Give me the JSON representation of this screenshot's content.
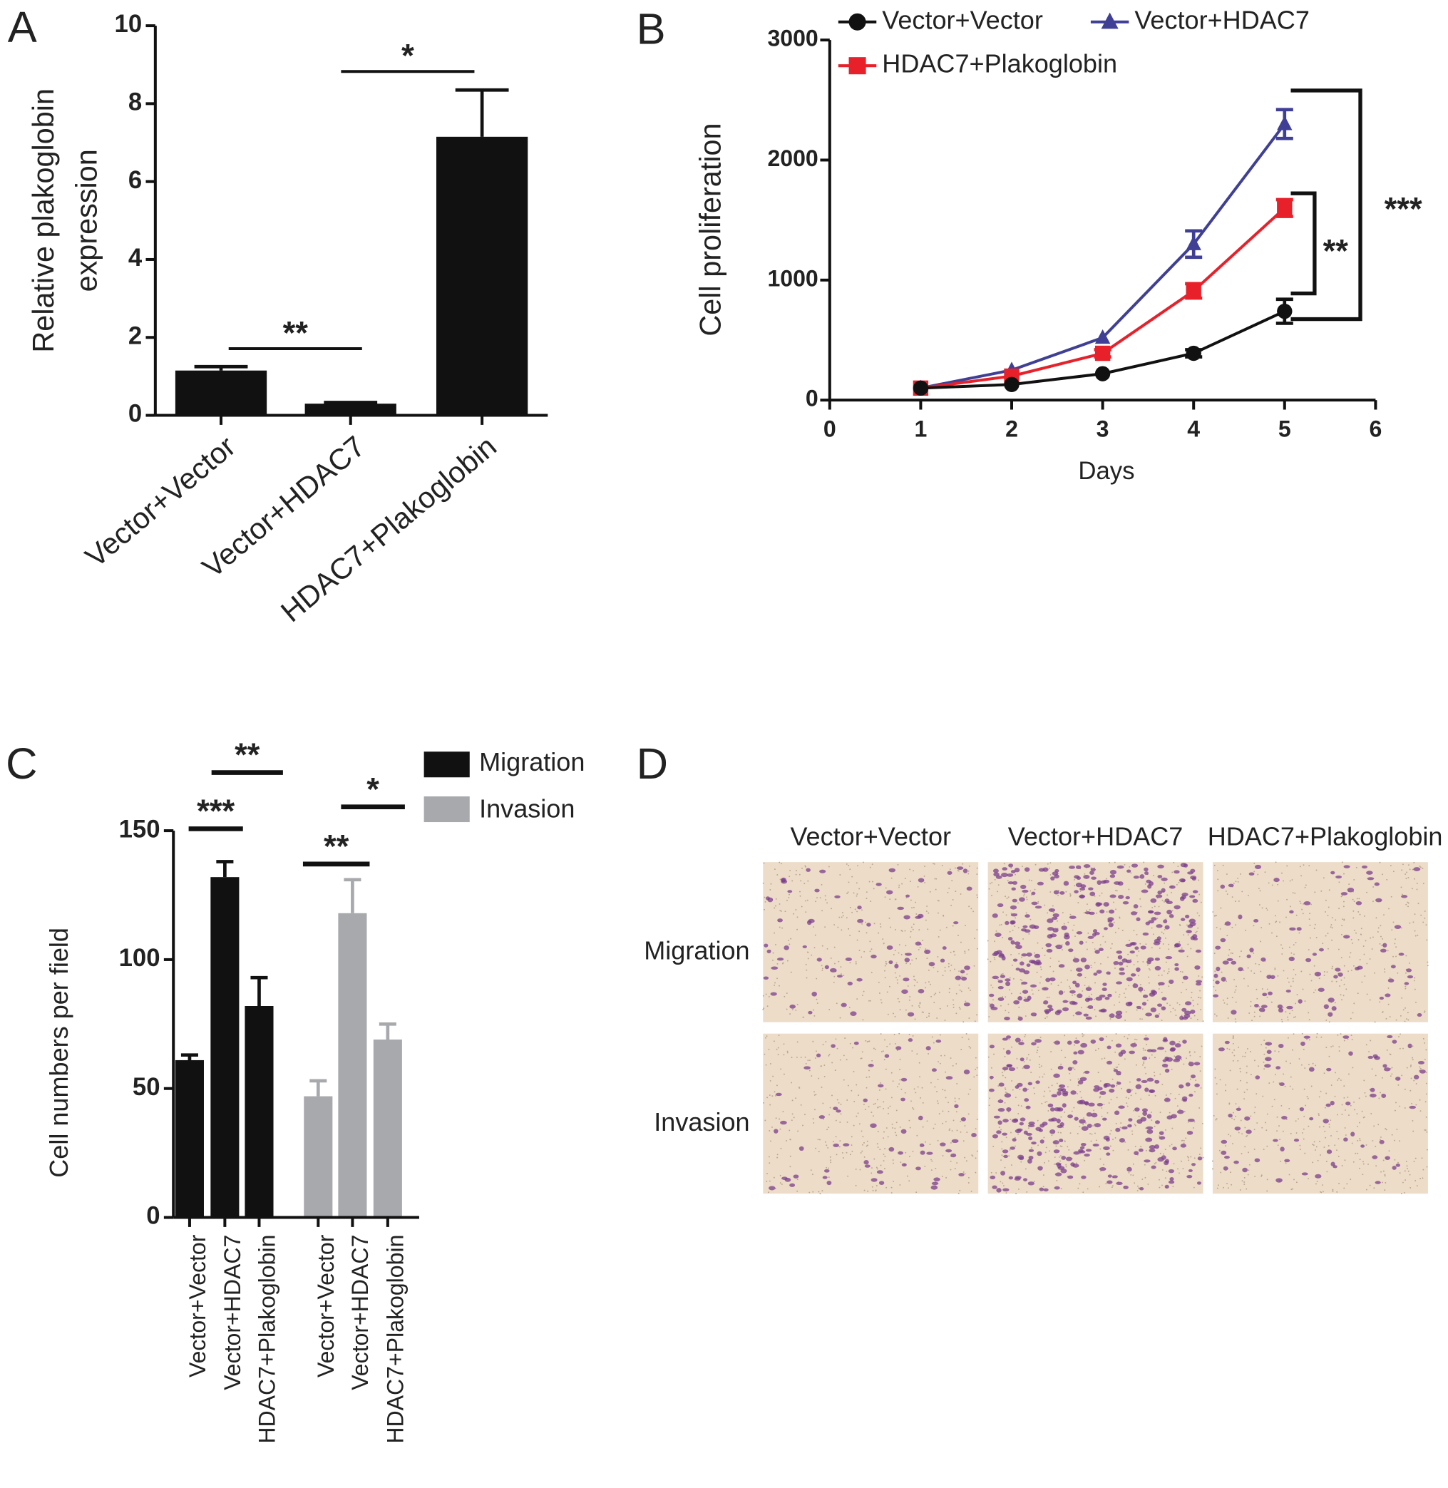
{
  "chart_data": [
    {
      "type": "bar",
      "label": "A",
      "ylabel": [
        "Relative plakoglobin",
        "expression"
      ],
      "categories": [
        "Vector+Vector",
        "Vector+HDAC7",
        "HDAC7+Plakoglobin"
      ],
      "values": [
        1.15,
        0.3,
        7.15
      ],
      "errors": [
        0.1,
        0.03,
        1.2
      ],
      "color": "#111111",
      "ylim": [
        0,
        10
      ],
      "yticks": [
        0,
        2,
        4,
        6,
        8,
        10
      ],
      "annotations": [
        "**",
        "*"
      ]
    },
    {
      "type": "line",
      "label": "B",
      "xlabel": "Days",
      "ylabel": "Cell proliferation",
      "x": [
        1,
        2,
        3,
        4,
        5
      ],
      "series": [
        {
          "name": "Vector+Vector",
          "color": "#111111",
          "marker": "circle",
          "values": [
            100,
            130,
            220,
            390,
            740
          ],
          "errors": [
            10,
            10,
            15,
            30,
            100
          ]
        },
        {
          "name": "Vector+HDAC7",
          "color": "#3f3f95",
          "marker": "triangle",
          "values": [
            100,
            250,
            520,
            1300,
            2300
          ],
          "errors": [
            10,
            15,
            20,
            110,
            120
          ]
        },
        {
          "name": "HDAC7+Plakoglobin",
          "color": "#e8202a",
          "marker": "square",
          "values": [
            100,
            200,
            390,
            910,
            1600
          ],
          "errors": [
            10,
            10,
            30,
            60,
            70
          ]
        }
      ],
      "xlim": [
        0,
        6
      ],
      "xticks": [
        0,
        1,
        2,
        3,
        4,
        5,
        6
      ],
      "ylim": [
        0,
        3000
      ],
      "yticks": [
        0,
        1000,
        2000,
        3000
      ],
      "annotations": [
        "***",
        "**"
      ]
    },
    {
      "type": "grouped-bar",
      "label": "C",
      "ylabel": "Cell numbers per field",
      "categories": [
        "Vector+Vector",
        "Vector+HDAC7",
        "HDAC7+Plakoglobin"
      ],
      "series": [
        {
          "name": "Migration",
          "color": "#111111",
          "values": [
            61,
            132,
            82
          ],
          "errors": [
            2,
            6,
            11
          ]
        },
        {
          "name": "Invasion",
          "color": "#a8a9ad",
          "values": [
            47,
            118,
            69
          ],
          "errors": [
            6,
            13,
            6
          ]
        }
      ],
      "ylim": [
        0,
        150
      ],
      "yticks": [
        0,
        50,
        100,
        150
      ],
      "legend": "top-right",
      "annotations": [
        "***",
        "**",
        "**",
        "*"
      ]
    }
  ],
  "panel_d": {
    "label": "D",
    "columns": [
      "Vector+Vector",
      "Vector+HDAC7",
      "HDAC7+Plakoglobin"
    ],
    "rows": [
      "Migration",
      "Invasion"
    ]
  }
}
